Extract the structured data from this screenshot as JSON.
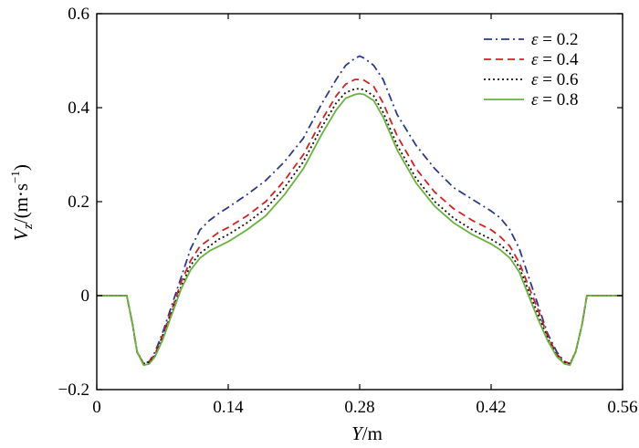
{
  "chart_data": {
    "type": "line",
    "title": "",
    "xlabel_var": "Y",
    "xlabel_unit": "/m",
    "ylabel_var": "V",
    "ylabel_sub": "z",
    "ylabel_unit": "/(m·s",
    "ylabel_exp": "−1",
    "ylabel_close": ")",
    "xlim": [
      0,
      0.56
    ],
    "ylim": [
      -0.2,
      0.6
    ],
    "xticks": [
      0,
      0.14,
      0.28,
      0.42,
      0.56
    ],
    "xtick_labels": [
      "0",
      "0.14",
      "0.28",
      "0.42",
      "0.56"
    ],
    "yticks": [
      -0.2,
      0,
      0.2,
      0.4,
      0.6
    ],
    "ytick_labels": [
      "−0.2",
      "0",
      "0.2",
      "0.4",
      "0.6"
    ],
    "legend_position": "top-right",
    "legend_symbol": "ε",
    "series": [
      {
        "name": "ε = 0.2",
        "value": "0.2",
        "color": "#2b3a8f",
        "dash": "dashdot",
        "x": [
          0,
          0.032,
          0.038,
          0.043,
          0.05,
          0.056,
          0.062,
          0.07,
          0.08,
          0.09,
          0.1,
          0.11,
          0.12,
          0.13,
          0.14,
          0.16,
          0.18,
          0.2,
          0.22,
          0.24,
          0.255,
          0.265,
          0.275,
          0.28,
          0.285,
          0.295,
          0.305,
          0.32,
          0.34,
          0.36,
          0.38,
          0.4,
          0.42,
          0.43,
          0.44,
          0.45,
          0.46,
          0.47,
          0.48,
          0.49,
          0.498,
          0.504,
          0.51,
          0.517,
          0.522,
          0.528,
          0.56
        ],
        "y": [
          0,
          0,
          -0.06,
          -0.12,
          -0.145,
          -0.14,
          -0.12,
          -0.08,
          -0.02,
          0.04,
          0.1,
          0.14,
          0.16,
          0.175,
          0.188,
          0.215,
          0.245,
          0.285,
          0.335,
          0.41,
          0.46,
          0.49,
          0.505,
          0.51,
          0.505,
          0.49,
          0.46,
          0.385,
          0.32,
          0.27,
          0.23,
          0.205,
          0.18,
          0.165,
          0.14,
          0.1,
          0.04,
          -0.02,
          -0.08,
          -0.12,
          -0.14,
          -0.145,
          -0.12,
          -0.06,
          0,
          0,
          0
        ]
      },
      {
        "name": "ε = 0.4",
        "value": "0.4",
        "color": "#d42020",
        "dash": "dash",
        "x": [
          0,
          0.032,
          0.038,
          0.043,
          0.05,
          0.056,
          0.062,
          0.07,
          0.08,
          0.09,
          0.1,
          0.11,
          0.12,
          0.13,
          0.14,
          0.16,
          0.18,
          0.2,
          0.22,
          0.24,
          0.255,
          0.265,
          0.275,
          0.28,
          0.285,
          0.295,
          0.305,
          0.32,
          0.34,
          0.36,
          0.38,
          0.4,
          0.42,
          0.43,
          0.44,
          0.45,
          0.46,
          0.47,
          0.48,
          0.49,
          0.498,
          0.504,
          0.51,
          0.517,
          0.522,
          0.528,
          0.56
        ],
        "y": [
          0,
          0,
          -0.06,
          -0.12,
          -0.145,
          -0.14,
          -0.125,
          -0.085,
          -0.03,
          0.03,
          0.075,
          0.105,
          0.12,
          0.135,
          0.145,
          0.17,
          0.2,
          0.245,
          0.3,
          0.375,
          0.425,
          0.45,
          0.46,
          0.46,
          0.458,
          0.445,
          0.41,
          0.34,
          0.27,
          0.22,
          0.185,
          0.16,
          0.14,
          0.125,
          0.105,
          0.07,
          0.02,
          -0.03,
          -0.085,
          -0.125,
          -0.14,
          -0.145,
          -0.12,
          -0.06,
          0,
          0,
          0
        ]
      },
      {
        "name": "ε = 0.6",
        "value": "0.6",
        "color": "#111111",
        "dash": "dot",
        "x": [
          0,
          0.032,
          0.038,
          0.043,
          0.05,
          0.056,
          0.062,
          0.07,
          0.08,
          0.09,
          0.1,
          0.11,
          0.12,
          0.13,
          0.14,
          0.16,
          0.18,
          0.2,
          0.22,
          0.24,
          0.255,
          0.265,
          0.275,
          0.28,
          0.285,
          0.295,
          0.305,
          0.32,
          0.34,
          0.36,
          0.38,
          0.4,
          0.42,
          0.43,
          0.44,
          0.45,
          0.46,
          0.47,
          0.48,
          0.49,
          0.498,
          0.504,
          0.51,
          0.517,
          0.522,
          0.528,
          0.56
        ],
        "y": [
          0,
          0,
          -0.06,
          -0.12,
          -0.145,
          -0.142,
          -0.128,
          -0.09,
          -0.035,
          0.02,
          0.065,
          0.09,
          0.105,
          0.12,
          0.13,
          0.155,
          0.185,
          0.23,
          0.285,
          0.36,
          0.41,
          0.432,
          0.44,
          0.44,
          0.438,
          0.425,
          0.39,
          0.32,
          0.25,
          0.2,
          0.165,
          0.14,
          0.12,
          0.108,
          0.09,
          0.06,
          0.01,
          -0.04,
          -0.09,
          -0.128,
          -0.142,
          -0.145,
          -0.12,
          -0.06,
          0,
          0,
          0
        ]
      },
      {
        "name": "ε = 0.8",
        "value": "0.8",
        "color": "#6ab23e",
        "dash": "solid",
        "x": [
          0,
          0.032,
          0.038,
          0.043,
          0.05,
          0.056,
          0.062,
          0.07,
          0.08,
          0.09,
          0.1,
          0.11,
          0.12,
          0.13,
          0.14,
          0.16,
          0.18,
          0.2,
          0.22,
          0.24,
          0.255,
          0.265,
          0.275,
          0.28,
          0.285,
          0.295,
          0.305,
          0.32,
          0.34,
          0.36,
          0.38,
          0.4,
          0.42,
          0.43,
          0.44,
          0.45,
          0.46,
          0.47,
          0.48,
          0.49,
          0.498,
          0.504,
          0.51,
          0.517,
          0.522,
          0.528,
          0.56
        ],
        "y": [
          0,
          0,
          -0.06,
          -0.12,
          -0.148,
          -0.145,
          -0.13,
          -0.095,
          -0.04,
          0.015,
          0.055,
          0.08,
          0.095,
          0.105,
          0.115,
          0.14,
          0.17,
          0.215,
          0.27,
          0.345,
          0.395,
          0.42,
          0.428,
          0.43,
          0.428,
          0.415,
          0.38,
          0.31,
          0.24,
          0.19,
          0.155,
          0.13,
          0.11,
          0.097,
          0.08,
          0.05,
          0.0,
          -0.05,
          -0.095,
          -0.13,
          -0.145,
          -0.148,
          -0.12,
          -0.06,
          0,
          0,
          0
        ]
      }
    ]
  }
}
